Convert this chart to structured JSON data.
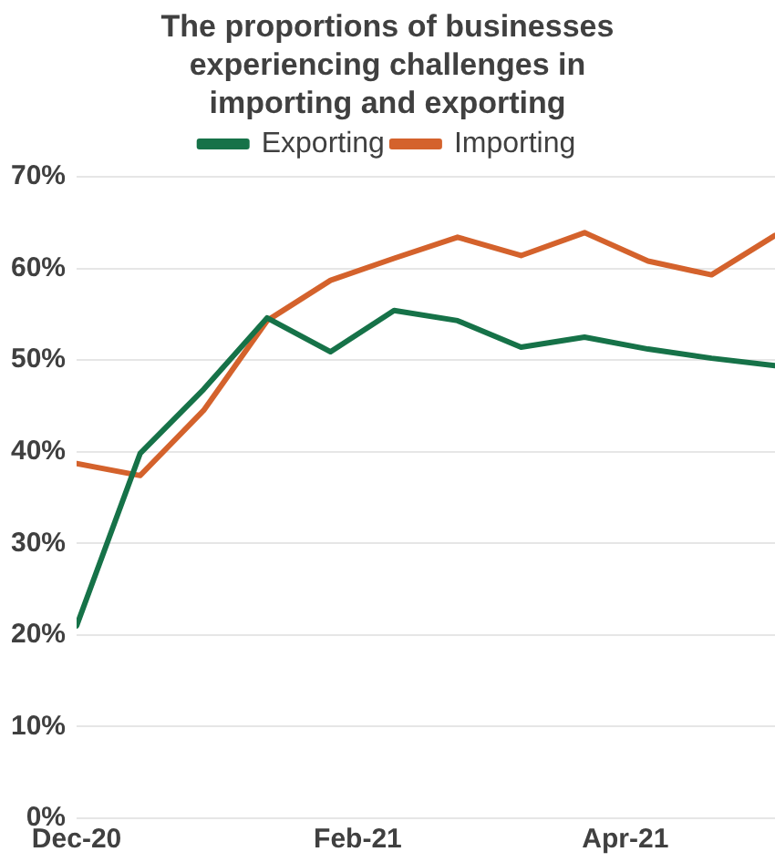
{
  "chart_data": {
    "type": "line",
    "title": "The proportions of businesses experiencing challenges in importing and exporting",
    "x": [
      "2020-12-01",
      "2020-12-15",
      "2020-12-29",
      "2021-01-12",
      "2021-01-26",
      "2021-02-09",
      "2021-02-23",
      "2021-03-09",
      "2021-03-23",
      "2021-04-06",
      "2021-04-20",
      "2021-05-04"
    ],
    "series": [
      {
        "name": "Exporting",
        "color": "#167248",
        "values": [
          21,
          39.8,
          46.8,
          54.6,
          50.9,
          55.4,
          54.3,
          51.4,
          52.5,
          51.2,
          50.2,
          49.4
        ]
      },
      {
        "name": "Importing",
        "color": "#d4622c",
        "values": [
          38.7,
          37.4,
          44.5,
          54.3,
          58.7,
          61.1,
          63.4,
          61.4,
          63.9,
          60.8,
          59.3,
          63.6
        ]
      }
    ],
    "xlim": [
      "2020-12-01",
      "2021-05-04"
    ],
    "xticks": [
      {
        "value": "2020-12-01",
        "label": "Dec-20"
      },
      {
        "value": "2021-02-01",
        "label": "Feb-21"
      },
      {
        "value": "2021-04-01",
        "label": "Apr-21"
      }
    ],
    "ylim": [
      0,
      70
    ],
    "yticks": [
      {
        "value": 0,
        "label": "0%"
      },
      {
        "value": 10,
        "label": "10%"
      },
      {
        "value": 20,
        "label": "20%"
      },
      {
        "value": 30,
        "label": "30%"
      },
      {
        "value": 40,
        "label": "40%"
      },
      {
        "value": 50,
        "label": "50%"
      },
      {
        "value": 60,
        "label": "60%"
      },
      {
        "value": 70,
        "label": "70%"
      }
    ],
    "grid": "y",
    "legend": "top",
    "marker": "none",
    "line_style": "solid"
  }
}
